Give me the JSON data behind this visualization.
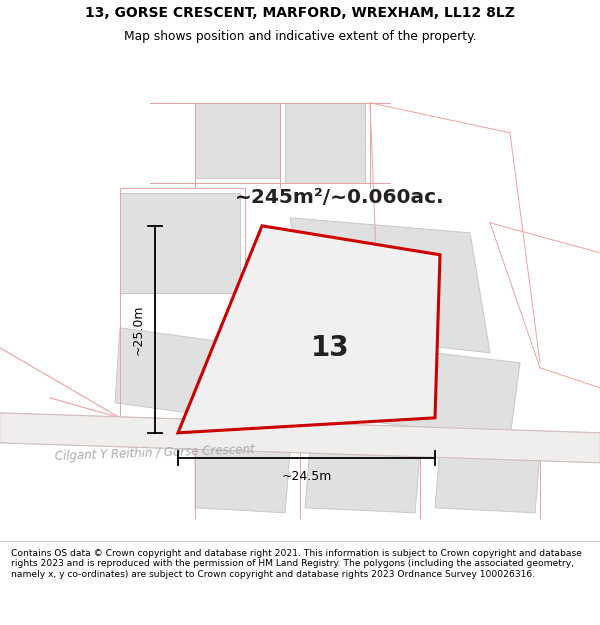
{
  "title_line1": "13, GORSE CRESCENT, MARFORD, WREXHAM, LL12 8LZ",
  "title_line2": "Map shows position and indicative extent of the property.",
  "area_text": "~245m²/~0.060ac.",
  "label_number": "13",
  "dim_vertical": "~25.0m",
  "dim_horizontal": "~24.5m",
  "street_label": "Cilgant Y Reithin / Gorse Crescent",
  "footer_text": "Contains OS data © Crown copyright and database right 2021. This information is subject to Crown copyright and database rights 2023 and is reproduced with the permission of HM Land Registry. The polygons (including the associated geometry, namely x, y co-ordinates) are subject to Crown copyright and database rights 2023 Ordnance Survey 100026316.",
  "bg_color": "#ffffff",
  "map_bg": "#ffffff",
  "plot_fill": "#eeeeee",
  "plot_edge_color": "#cc0000",
  "gray_poly_fill": "#e0e0e0",
  "gray_poly_edge": "#c8c8c8",
  "pink_line": "#f0a0a0",
  "dim_color": "#000000",
  "street_label_color": "#aaaaaa",
  "title_color": "#000000",
  "footer_color": "#000000"
}
